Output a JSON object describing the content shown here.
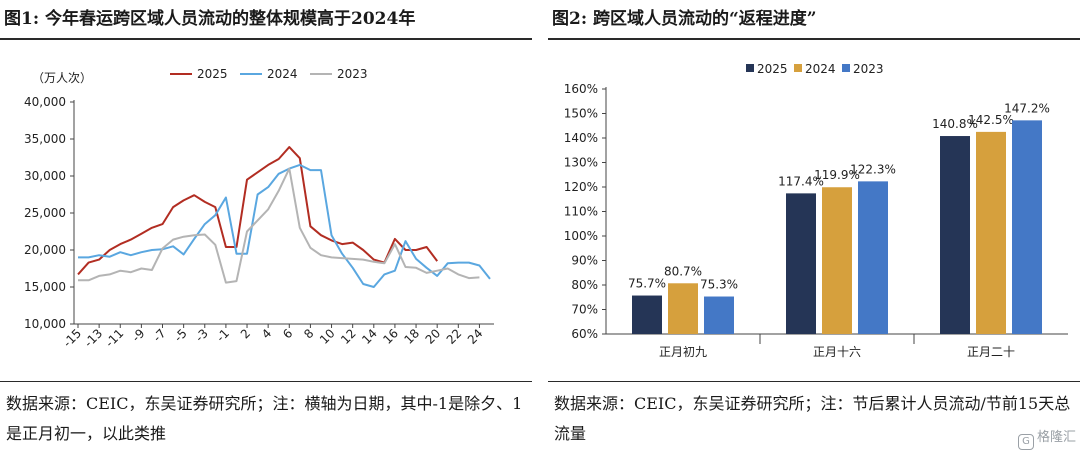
{
  "figure1": {
    "title": "图1: 今年春运跨区域人员流动的整体规模高于2024年",
    "source": "数据来源：CEIC，东吴证券研究所；注：横轴为日期，其中-1是除夕、1是正月初一，以此类推",
    "chart_data": {
      "type": "line",
      "ylabel": "（万人次）",
      "ylim": [
        10000,
        40000
      ],
      "yticks": [
        "10,000",
        "15,000",
        "20,000",
        "25,000",
        "30,000",
        "35,000",
        "40,000"
      ],
      "ytick_values": [
        10000,
        15000,
        20000,
        25000,
        30000,
        35000,
        40000
      ],
      "xticks": [
        "-15",
        "-13",
        "-11",
        "-9",
        "-7",
        "-5",
        "-3",
        "-1",
        "2",
        "4",
        "6",
        "8",
        "10",
        "12",
        "14",
        "16",
        "18",
        "20",
        "22",
        "24"
      ],
      "x": [
        "-15",
        "-14",
        "-13",
        "-12",
        "-11",
        "-10",
        "-9",
        "-8",
        "-7",
        "-6",
        "-5",
        "-4",
        "-3",
        "-2",
        "-1",
        "1",
        "2",
        "3",
        "4",
        "5",
        "6",
        "7",
        "8",
        "9",
        "10",
        "11",
        "12",
        "13",
        "14",
        "15",
        "16",
        "17",
        "18",
        "19",
        "20",
        "21",
        "22",
        "23",
        "24",
        "25"
      ],
      "legend_position": "top",
      "series": [
        {
          "name": "2025",
          "color": "#b22d22",
          "values": [
            16700,
            18300,
            18700,
            20000,
            20800,
            21400,
            22200,
            23000,
            23500,
            25800,
            26700,
            27400,
            26500,
            25800,
            20400,
            20400,
            29500,
            30500,
            31500,
            32300,
            33900,
            32400,
            23200,
            22000,
            21300,
            20800,
            21000,
            20000,
            18700,
            18300,
            21500,
            20000,
            20000,
            20400,
            18500,
            null,
            null,
            null,
            null,
            null
          ]
        },
        {
          "name": "2024",
          "color": "#5aa7e0",
          "values": [
            19000,
            19000,
            19300,
            19100,
            19700,
            19300,
            19700,
            20000,
            20100,
            20500,
            19400,
            21500,
            23500,
            24700,
            27100,
            19500,
            19500,
            27500,
            28500,
            30300,
            31000,
            31500,
            30800,
            30800,
            22000,
            19500,
            17600,
            15400,
            15000,
            16700,
            17200,
            21200,
            18800,
            17600,
            16500,
            18200,
            18300,
            18300,
            17900,
            16100
          ]
        },
        {
          "name": "2023",
          "color": "#b4b4b4",
          "values": [
            15900,
            15900,
            16500,
            16700,
            17200,
            17000,
            17500,
            17300,
            20200,
            21400,
            21800,
            22000,
            22100,
            20700,
            15600,
            15800,
            22500,
            24000,
            25500,
            28000,
            31000,
            23000,
            20300,
            19300,
            19000,
            18900,
            18800,
            18700,
            18400,
            18200,
            20800,
            17700,
            17600,
            16900,
            17200,
            17500,
            16700,
            16200,
            16300,
            null
          ]
        }
      ]
    }
  },
  "figure2": {
    "title": "图2: 跨区域人员流动的“返程进度”",
    "source": "数据来源：CEIC，东吴证券研究所；注：节后累计人员流动/节前15天总流量",
    "chart_data": {
      "type": "bar",
      "categories": [
        "正月初九",
        "正月十六",
        "正月二十"
      ],
      "ylim": [
        0.6,
        1.6
      ],
      "yticks": [
        "60%",
        "70%",
        "80%",
        "90%",
        "100%",
        "110%",
        "120%",
        "130%",
        "140%",
        "150%",
        "160%"
      ],
      "ytick_values": [
        0.6,
        0.7,
        0.8,
        0.9,
        1.0,
        1.1,
        1.2,
        1.3,
        1.4,
        1.5,
        1.6
      ],
      "legend_position": "top",
      "series": [
        {
          "name": "2025",
          "color": "#253556",
          "values": [
            0.757,
            1.174,
            1.408
          ],
          "labels": [
            "75.7%",
            "117.4%",
            "140.8%"
          ]
        },
        {
          "name": "2024",
          "color": "#d6a03d",
          "values": [
            0.807,
            1.199,
            1.425
          ],
          "labels": [
            "80.7%",
            "119.9%",
            "142.5%"
          ]
        },
        {
          "name": "2023",
          "color": "#4478c6",
          "values": [
            0.753,
            1.223,
            1.472
          ],
          "labels": [
            "75.3%",
            "122.3%",
            "147.2%"
          ]
        }
      ]
    }
  },
  "watermark": {
    "icon": "gelonghui-logo-icon",
    "text": "格隆汇"
  }
}
